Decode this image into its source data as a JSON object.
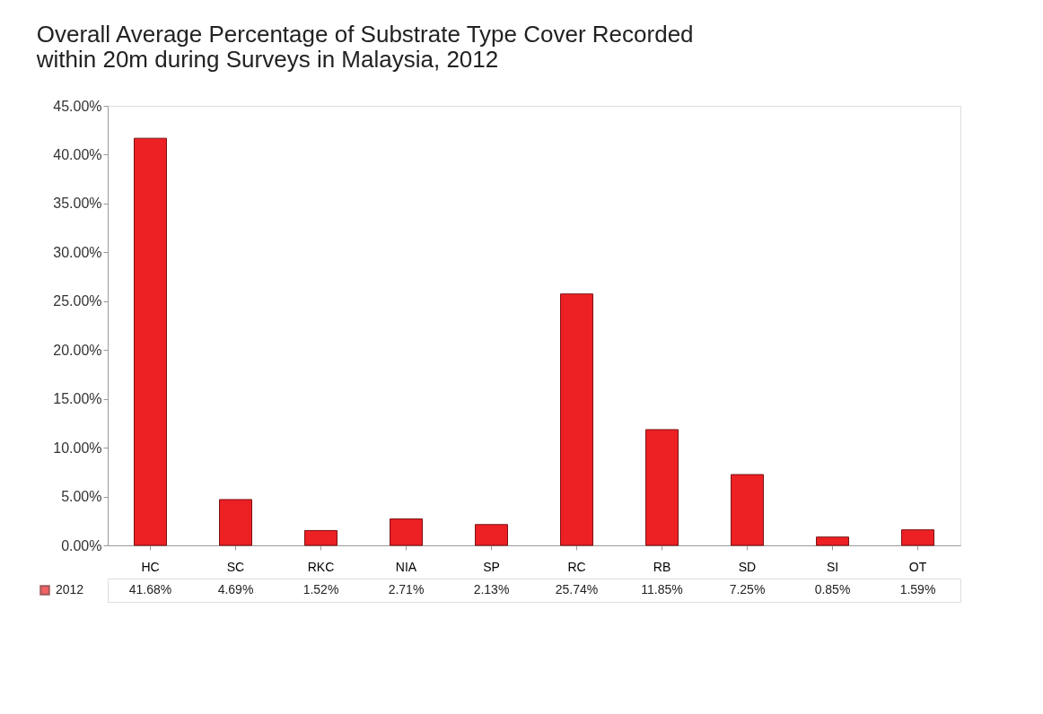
{
  "chart_data": {
    "type": "bar",
    "title": [
      "Overall Average Percentage of Substrate Type Cover Recorded",
      "within 20m during Surveys in Malaysia, 2012"
    ],
    "categories": [
      "HC",
      "SC",
      "RKC",
      "NIA",
      "SP",
      "RC",
      "RB",
      "SD",
      "SI",
      "OT"
    ],
    "series": [
      {
        "name": "2012",
        "color": "#ed2024",
        "values": [
          41.68,
          4.69,
          1.52,
          2.71,
          2.13,
          25.74,
          11.85,
          7.25,
          0.85,
          1.59
        ],
        "value_labels": [
          "41.68%",
          "4.69%",
          "1.52%",
          "2.71%",
          "2.13%",
          "25.74%",
          "11.85%",
          "7.25%",
          "0.85%",
          "1.59%"
        ]
      }
    ],
    "ylim": [
      0,
      45
    ],
    "yticks": [
      {
        "value": 0,
        "label": "0.00%"
      },
      {
        "value": 5,
        "label": "5.00%"
      },
      {
        "value": 10,
        "label": "10.00%"
      },
      {
        "value": 15,
        "label": "15.00%"
      },
      {
        "value": 20,
        "label": "20.00%"
      },
      {
        "value": 25,
        "label": "25.00%"
      },
      {
        "value": 30,
        "label": "30.00%"
      },
      {
        "value": 35,
        "label": "35.00%"
      },
      {
        "value": 40,
        "label": "40.00%"
      },
      {
        "value": 45,
        "label": "45.00%"
      }
    ],
    "grid": false,
    "legend": "bottom"
  }
}
